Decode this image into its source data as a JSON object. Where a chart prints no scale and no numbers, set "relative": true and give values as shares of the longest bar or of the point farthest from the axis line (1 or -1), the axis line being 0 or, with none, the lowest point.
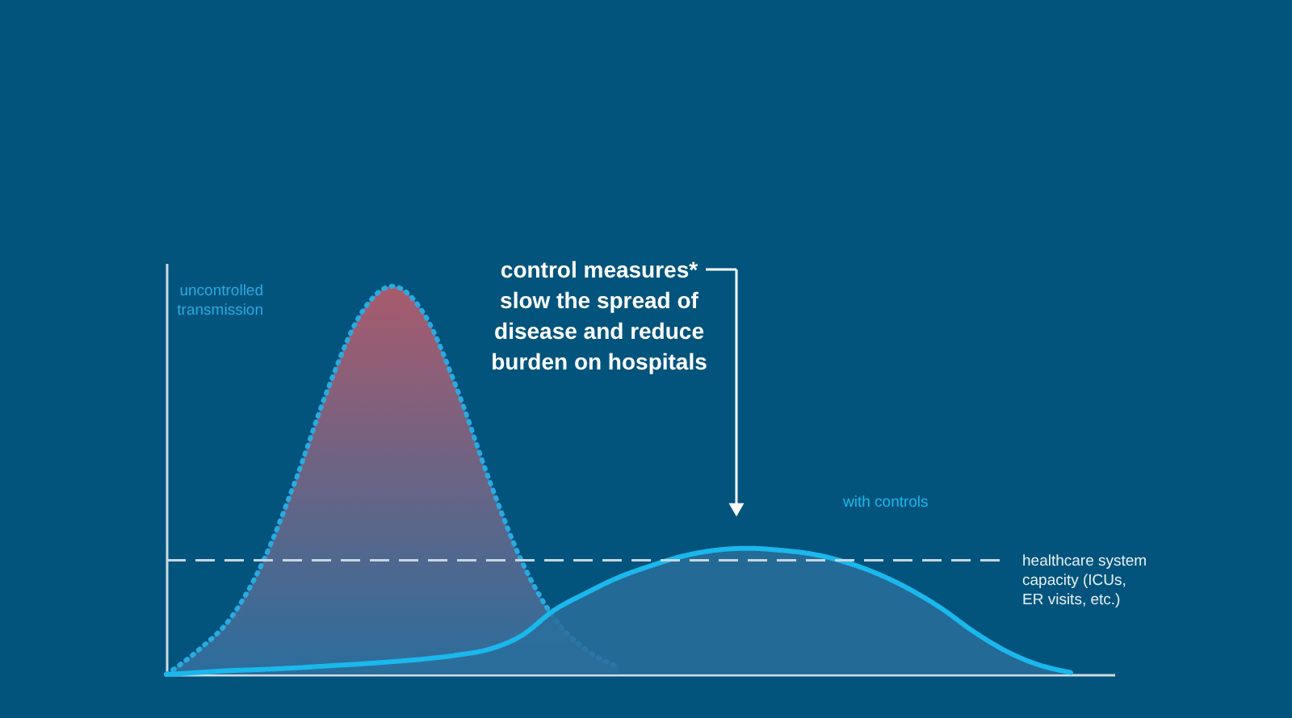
{
  "chart_data": {
    "type": "area",
    "relative": true,
    "legend": false,
    "grid": false,
    "tick_labels": false,
    "categories": [
      null,
      null,
      null,
      null,
      null,
      null,
      null,
      null,
      null,
      null,
      null,
      null,
      null,
      null,
      null,
      null,
      null,
      null,
      null,
      null,
      null,
      null,
      null,
      null,
      null,
      null,
      null,
      null,
      null,
      null
    ],
    "series": [
      {
        "name": "uncontrolled\ntransmission",
        "color": "#29aae1",
        "line_style": "dotted",
        "values": [
          0.0,
          0.063,
          0.146,
          0.292,
          0.5,
          0.735,
          0.926,
          1.0,
          0.926,
          0.735,
          0.5,
          0.292,
          0.146,
          0.063,
          0.02,
          null,
          null,
          null,
          null,
          null,
          null,
          null,
          null,
          null,
          null,
          null,
          null,
          null,
          null,
          null
        ]
      },
      {
        "name": "with controls",
        "color": "#1ab8ec",
        "line_style": "solid",
        "values": [
          0.0,
          0.005,
          0.01,
          0.013,
          0.017,
          0.022,
          0.027,
          0.033,
          0.04,
          0.05,
          0.065,
          0.1,
          0.165,
          0.21,
          0.25,
          0.28,
          0.305,
          0.32,
          0.325,
          0.32,
          0.31,
          0.29,
          0.26,
          0.22,
          0.17,
          0.11,
          0.06,
          0.025,
          0.005,
          null
        ]
      }
    ],
    "ref_lines": [
      {
        "axis": "y",
        "value": 0.294,
        "label": "healthcare system\ncapacity (ICUs,\nER visits, etc.)",
        "color": "#c8d6e0",
        "line_style": "dashed"
      }
    ],
    "annotations": [
      "control measures*\nslow the spread of\ndisease and reduce\nburden on hospitals"
    ]
  }
}
